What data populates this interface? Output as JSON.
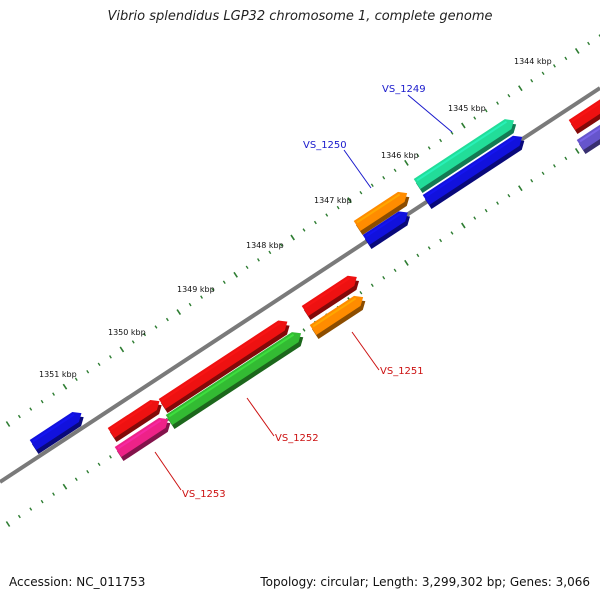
{
  "title": "Vibrio splendidus LGP32 chromosome 1, complete genome",
  "footer": {
    "accession": "Accession: NC_011753",
    "info": "Topology: circular; Length: 3,299,302 bp; Genes: 3,066"
  },
  "ticks": [
    {
      "label": "1344 kbp"
    },
    {
      "label": "1345 kbp"
    },
    {
      "label": "1346 kbp"
    },
    {
      "label": "1347 kbp"
    },
    {
      "label": "1348 kbp"
    },
    {
      "label": "1349 kbp"
    },
    {
      "label": "1350 kbp"
    },
    {
      "label": "1351 kbp"
    }
  ],
  "gene_labels": [
    {
      "label": "VS_1249",
      "color": "#1a1acc"
    },
    {
      "label": "VS_1250",
      "color": "#1a1acc"
    },
    {
      "label": "VS_1251",
      "color": "#cc1111"
    },
    {
      "label": "VS_1252",
      "color": "#cc1111"
    },
    {
      "label": "VS_1253",
      "color": "#cc1111"
    }
  ],
  "colors": {
    "red": "#ee1111",
    "blue": "#1111dd",
    "green": "#33bb33",
    "orange": "#ff8c00",
    "teal": "#22dd99",
    "pink": "#ee2288",
    "purple": "#6655cc",
    "backbone": "#777777",
    "tick": "#2e7d32"
  }
}
